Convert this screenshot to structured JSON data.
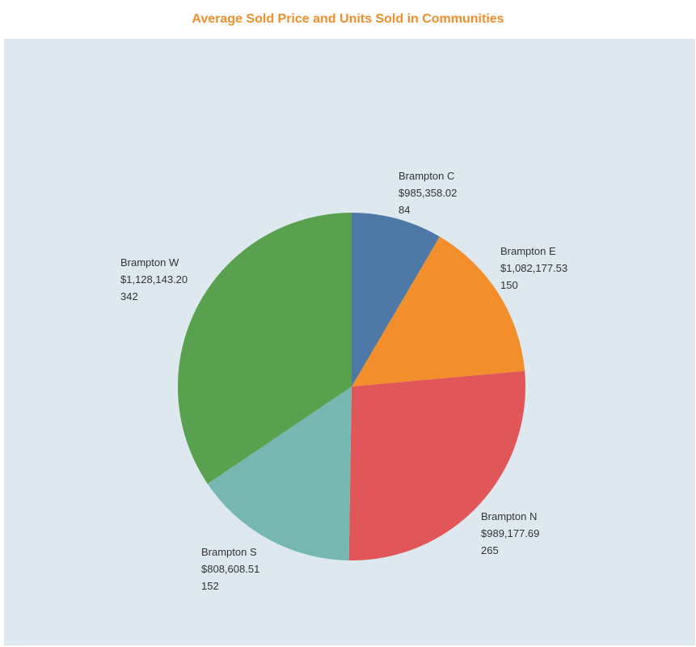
{
  "title": "Average Sold Price and Units Sold in Communities",
  "colors": {
    "title": "#F28E2B",
    "plot_background": "#DDE8EF",
    "page_background": "#FFFFFF"
  },
  "chart_data": {
    "type": "pie",
    "title": "Average Sold Price and Units Sold in Communities",
    "measure_angle": "Units Sold",
    "measure_label": "Average Sold Price",
    "start": "12 o'clock",
    "direction": "clockwise",
    "slices": [
      {
        "name": "Brampton C",
        "avg_price": "$985,358.02",
        "units": 84,
        "color": "#4E79A7"
      },
      {
        "name": "Brampton E",
        "avg_price": "$1,082,177.53",
        "units": 150,
        "color": "#F28E2B"
      },
      {
        "name": "Brampton N",
        "avg_price": "$989,177.69",
        "units": 265,
        "color": "#E15759"
      },
      {
        "name": "Brampton S",
        "avg_price": "$808,608.51",
        "units": 152,
        "color": "#76B7B2"
      },
      {
        "name": "Brampton W",
        "avg_price": "$1,128,143.20",
        "units": 342,
        "color": "#59A14F"
      }
    ]
  }
}
